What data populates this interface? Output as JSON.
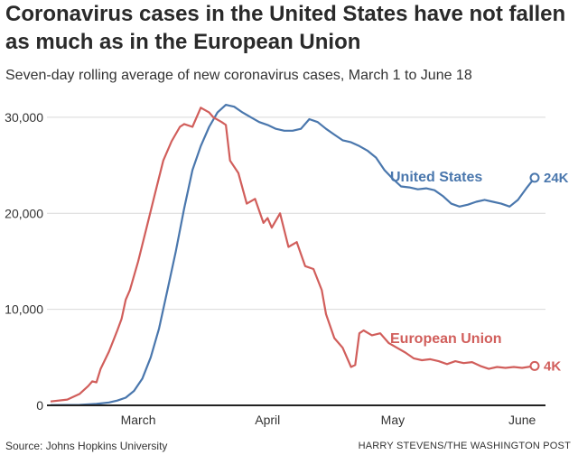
{
  "header": {
    "title": "Coronavirus cases in the United States have not fallen as much as in the European Union",
    "subtitle": "Seven-day rolling average of new coronavirus cases, March 1 to June 18"
  },
  "footer": {
    "source": "Source: Johns Hopkins University",
    "credit": "HARRY STEVENS/THE WASHINGTON POST"
  },
  "chart_data": {
    "type": "line",
    "x_axis": {
      "start": "2020-02-23",
      "end": "2020-06-18",
      "ticks": [
        {
          "label": "March",
          "date": "2020-03-15"
        },
        {
          "label": "April",
          "date": "2020-04-15"
        },
        {
          "label": "May",
          "date": "2020-05-15"
        },
        {
          "label": "June",
          "date": "2020-06-15"
        }
      ]
    },
    "y_axis": {
      "ylim": [
        0,
        33000
      ],
      "ticks": [
        {
          "label": "0",
          "value": 0
        },
        {
          "label": "10,000",
          "value": 10000
        },
        {
          "label": "20,000",
          "value": 20000
        },
        {
          "label": "30,000",
          "value": 30000
        }
      ]
    },
    "grid": true,
    "series": [
      {
        "name": "United States",
        "color": "#4a77ad",
        "end_label": "24K",
        "points": [
          [
            "2020-02-23",
            30
          ],
          [
            "2020-03-01",
            50
          ],
          [
            "2020-03-05",
            150
          ],
          [
            "2020-03-08",
            300
          ],
          [
            "2020-03-10",
            500
          ],
          [
            "2020-03-12",
            800
          ],
          [
            "2020-03-14",
            1500
          ],
          [
            "2020-03-16",
            2800
          ],
          [
            "2020-03-18",
            5000
          ],
          [
            "2020-03-20",
            8000
          ],
          [
            "2020-03-22",
            12000
          ],
          [
            "2020-03-24",
            16000
          ],
          [
            "2020-03-26",
            20500
          ],
          [
            "2020-03-28",
            24500
          ],
          [
            "2020-03-30",
            27000
          ],
          [
            "2020-04-01",
            29000
          ],
          [
            "2020-04-03",
            30500
          ],
          [
            "2020-04-05",
            31300
          ],
          [
            "2020-04-07",
            31100
          ],
          [
            "2020-04-09",
            30500
          ],
          [
            "2020-04-11",
            30000
          ],
          [
            "2020-04-13",
            29500
          ],
          [
            "2020-04-15",
            29200
          ],
          [
            "2020-04-17",
            28800
          ],
          [
            "2020-04-19",
            28600
          ],
          [
            "2020-04-21",
            28600
          ],
          [
            "2020-04-23",
            28800
          ],
          [
            "2020-04-25",
            29800
          ],
          [
            "2020-04-27",
            29500
          ],
          [
            "2020-04-29",
            28800
          ],
          [
            "2020-05-01",
            28200
          ],
          [
            "2020-05-03",
            27600
          ],
          [
            "2020-05-05",
            27400
          ],
          [
            "2020-05-07",
            27000
          ],
          [
            "2020-05-09",
            26500
          ],
          [
            "2020-05-11",
            25800
          ],
          [
            "2020-05-13",
            24500
          ],
          [
            "2020-05-15",
            23600
          ],
          [
            "2020-05-17",
            22800
          ],
          [
            "2020-05-19",
            22700
          ],
          [
            "2020-05-21",
            22500
          ],
          [
            "2020-05-23",
            22600
          ],
          [
            "2020-05-25",
            22400
          ],
          [
            "2020-05-27",
            21800
          ],
          [
            "2020-05-29",
            21000
          ],
          [
            "2020-05-31",
            20700
          ],
          [
            "2020-06-02",
            20900
          ],
          [
            "2020-06-04",
            21200
          ],
          [
            "2020-06-06",
            21400
          ],
          [
            "2020-06-08",
            21200
          ],
          [
            "2020-06-10",
            21000
          ],
          [
            "2020-06-12",
            20700
          ],
          [
            "2020-06-14",
            21400
          ],
          [
            "2020-06-16",
            22600
          ],
          [
            "2020-06-18",
            23700
          ]
        ]
      },
      {
        "name": "European Union",
        "color": "#d15e5b",
        "end_label": "4K",
        "points": [
          [
            "2020-02-23",
            400
          ],
          [
            "2020-02-27",
            600
          ],
          [
            "2020-03-01",
            1200
          ],
          [
            "2020-03-03",
            2000
          ],
          [
            "2020-03-04",
            2500
          ],
          [
            "2020-03-05",
            2400
          ],
          [
            "2020-03-06",
            3800
          ],
          [
            "2020-03-08",
            5600
          ],
          [
            "2020-03-10",
            7800
          ],
          [
            "2020-03-11",
            9000
          ],
          [
            "2020-03-12",
            11000
          ],
          [
            "2020-03-13",
            12000
          ],
          [
            "2020-03-15",
            15000
          ],
          [
            "2020-03-17",
            18500
          ],
          [
            "2020-03-19",
            22000
          ],
          [
            "2020-03-21",
            25500
          ],
          [
            "2020-03-23",
            27500
          ],
          [
            "2020-03-25",
            29000
          ],
          [
            "2020-03-26",
            29300
          ],
          [
            "2020-03-28",
            29000
          ],
          [
            "2020-03-30",
            31000
          ],
          [
            "2020-04-01",
            30500
          ],
          [
            "2020-04-02",
            30000
          ],
          [
            "2020-04-04",
            29500
          ],
          [
            "2020-04-05",
            29200
          ],
          [
            "2020-04-06",
            25500
          ],
          [
            "2020-04-08",
            24200
          ],
          [
            "2020-04-10",
            21000
          ],
          [
            "2020-04-12",
            21500
          ],
          [
            "2020-04-14",
            19000
          ],
          [
            "2020-04-15",
            19500
          ],
          [
            "2020-04-16",
            18500
          ],
          [
            "2020-04-18",
            20000
          ],
          [
            "2020-04-20",
            16500
          ],
          [
            "2020-04-22",
            17000
          ],
          [
            "2020-04-24",
            14500
          ],
          [
            "2020-04-26",
            14200
          ],
          [
            "2020-04-28",
            12000
          ],
          [
            "2020-04-29",
            9500
          ],
          [
            "2020-05-01",
            7000
          ],
          [
            "2020-05-03",
            6000
          ],
          [
            "2020-05-05",
            4000
          ],
          [
            "2020-05-06",
            4200
          ],
          [
            "2020-05-07",
            7500
          ],
          [
            "2020-05-08",
            7800
          ],
          [
            "2020-05-10",
            7300
          ],
          [
            "2020-05-12",
            7500
          ],
          [
            "2020-05-14",
            6500
          ],
          [
            "2020-05-16",
            6000
          ],
          [
            "2020-05-18",
            5500
          ],
          [
            "2020-05-20",
            4900
          ],
          [
            "2020-05-22",
            4700
          ],
          [
            "2020-05-24",
            4800
          ],
          [
            "2020-05-26",
            4600
          ],
          [
            "2020-05-28",
            4300
          ],
          [
            "2020-05-30",
            4600
          ],
          [
            "2020-06-01",
            4400
          ],
          [
            "2020-06-03",
            4500
          ],
          [
            "2020-06-05",
            4100
          ],
          [
            "2020-06-07",
            3800
          ],
          [
            "2020-06-09",
            4000
          ],
          [
            "2020-06-11",
            3900
          ],
          [
            "2020-06-13",
            4000
          ],
          [
            "2020-06-15",
            3900
          ],
          [
            "2020-06-18",
            4100
          ]
        ]
      }
    ]
  }
}
